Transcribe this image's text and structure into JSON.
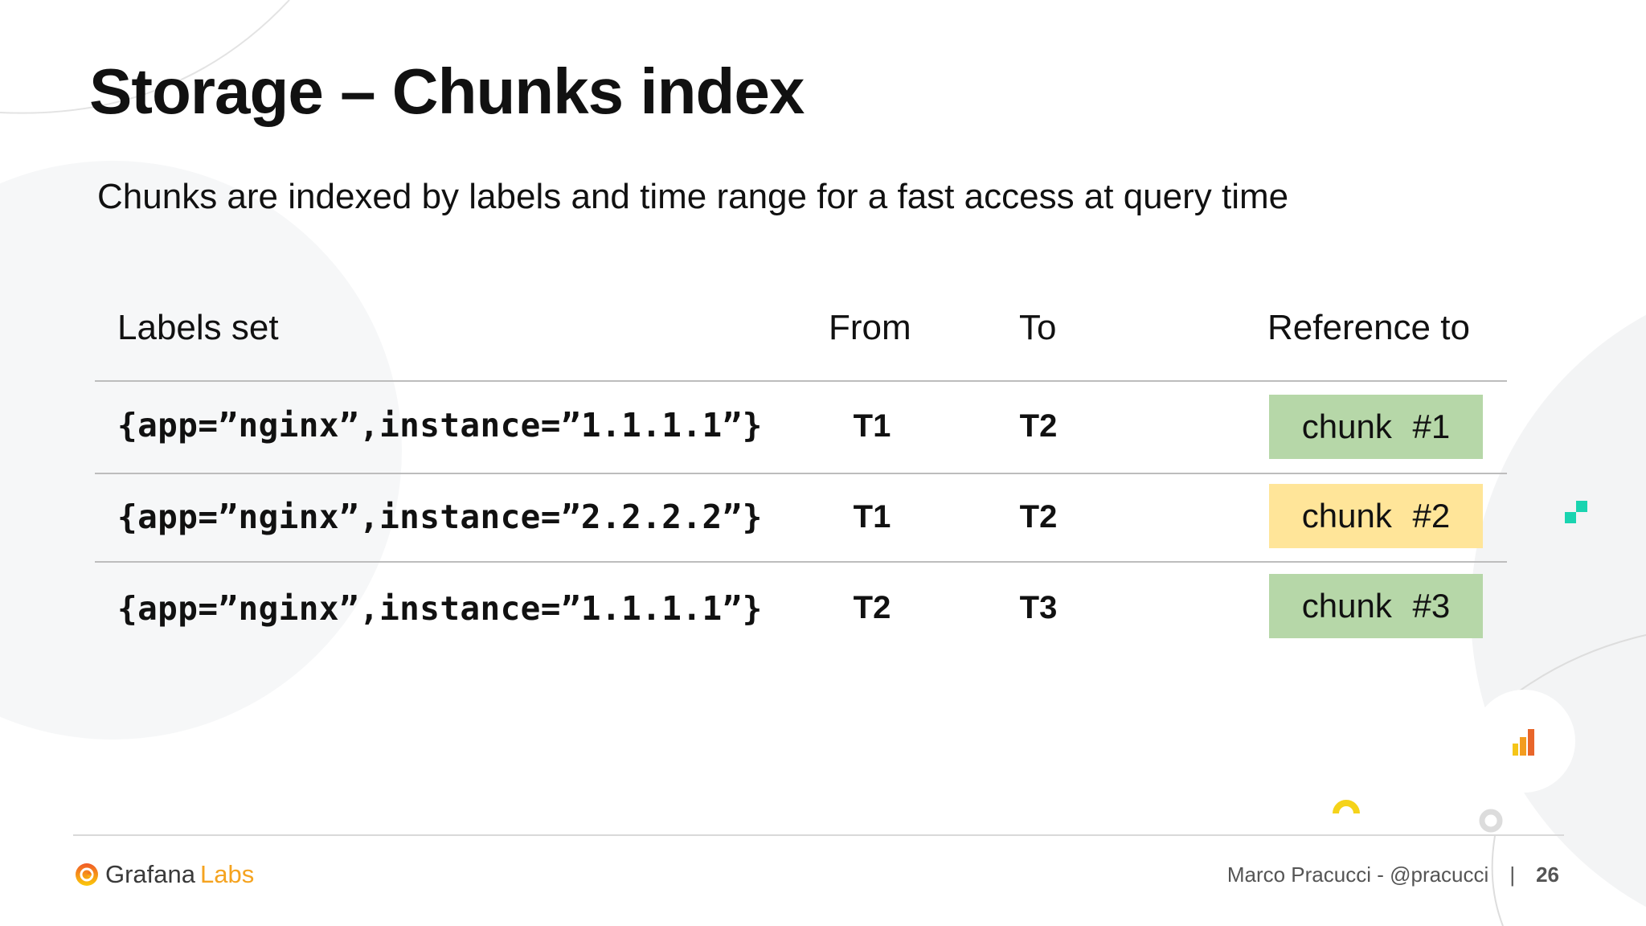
{
  "slide": {
    "title": "Storage – Chunks index",
    "subtitle": "Chunks are indexed by labels and time range for a fast access at query time"
  },
  "table": {
    "headers": [
      "Labels set",
      "From",
      "To",
      "Reference to"
    ],
    "rows": [
      {
        "labels": "{app=”nginx”,instance=”1.1.1.1”}",
        "from": "T1",
        "to": "T2",
        "ref": "chunk #1",
        "ref_color": "#b6d7a8"
      },
      {
        "labels": "{app=”nginx”,instance=”2.2.2.2”}",
        "from": "T1",
        "to": "T2",
        "ref": "chunk #2",
        "ref_color": "#ffe599"
      },
      {
        "labels": "{app=”nginx”,instance=”1.1.1.1”}",
        "from": "T2",
        "to": "T3",
        "ref": "chunk #3",
        "ref_color": "#b6d7a8"
      }
    ]
  },
  "footer": {
    "logo_text_1": "Grafana",
    "logo_text_2": "Labs",
    "author": "Marco Pracucci - @pracucci",
    "separator": "|",
    "page_number": "26"
  },
  "colors": {
    "accent_orange": "#f5821f",
    "accent_teal": "#19d4b0"
  }
}
